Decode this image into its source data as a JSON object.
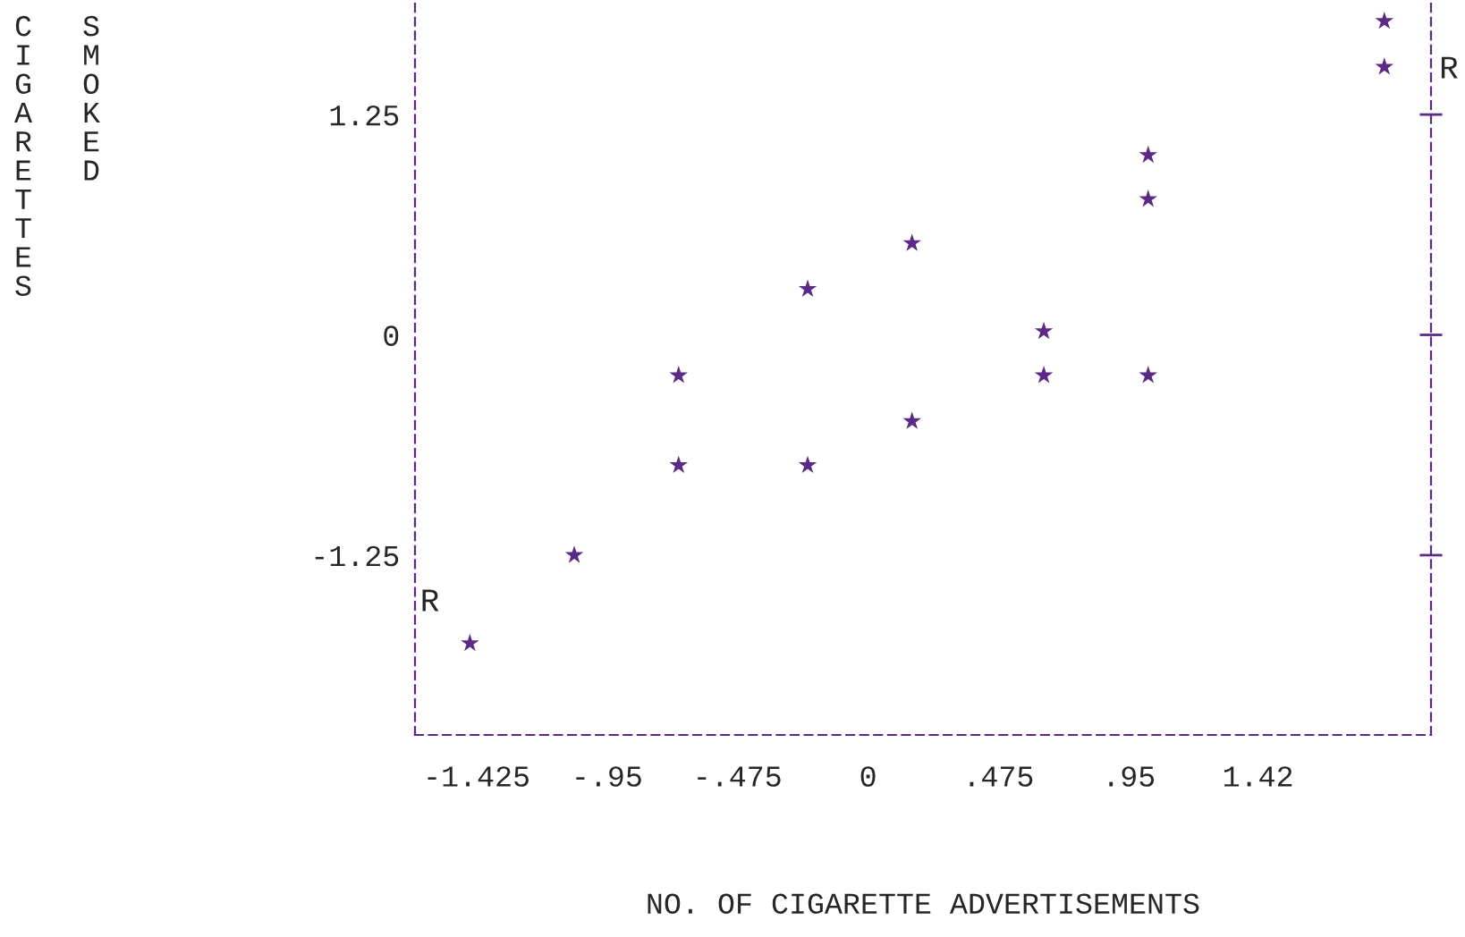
{
  "chart_data": {
    "type": "scatter",
    "xlabel": "NO. OF CIGARETTE ADVERTISEMENTS",
    "ylabel": "CIGARETTES SMOKED",
    "x": [
      -1.45,
      -1.07,
      -0.69,
      -0.69,
      -0.22,
      -0.22,
      0.16,
      0.16,
      0.64,
      0.64,
      1.02,
      1.02,
      1.02,
      1.88,
      1.88
    ],
    "series": [
      {
        "color": "#5b2a86",
        "values": [
          -1.75,
          -1.25,
          -0.23,
          -0.74,
          0.26,
          -0.74,
          0.52,
          -0.49,
          0.02,
          -0.23,
          1.02,
          0.77,
          -0.23,
          1.78,
          1.52
        ]
      }
    ],
    "marker": "star",
    "xlim": [
      -1.65,
      2.05
    ],
    "ylim": [
      -2.27,
      1.9
    ],
    "xticks": [
      {
        "value": -1.425,
        "label": "-1.425"
      },
      {
        "value": -0.95,
        "label": "-.95"
      },
      {
        "value": -0.475,
        "label": "-.475"
      },
      0,
      {
        "value": 0.475,
        "label": ".475"
      },
      {
        "value": 0.95,
        "label": ".95"
      },
      1.42
    ],
    "yticks": [
      {
        "value": -1.25,
        "label": "-1.25"
      },
      0,
      1.25
    ],
    "annotations": [
      "R",
      "R"
    ],
    "grid": false,
    "legend": false
  }
}
